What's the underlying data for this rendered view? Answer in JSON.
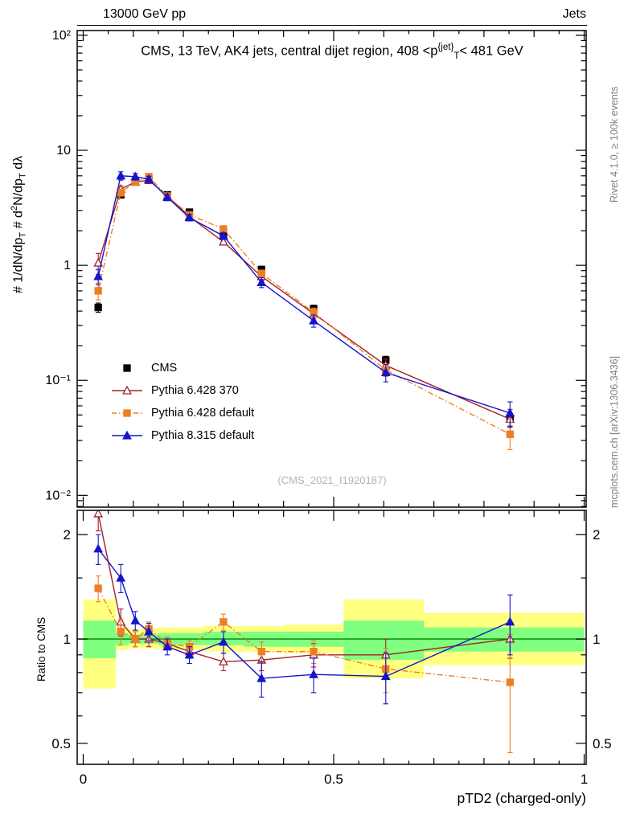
{
  "header": {
    "left": "13000 GeV pp",
    "right": "Jets"
  },
  "title_parts": [
    {
      "t": "CMS, 13 TeV, AK4 jets, central dijet region, 408 <p"
    },
    {
      "t": "{jet}",
      "s": "sup"
    },
    {
      "t": "T",
      "s": "sub"
    },
    {
      "t": "< 481 GeV"
    }
  ],
  "ylabel_parts": [
    {
      "t": "# 1/dN/dp"
    },
    {
      "t": "T",
      "s": "sub"
    },
    {
      "t": "  # d"
    },
    {
      "t": "2",
      "s": "sup"
    },
    {
      "t": "N/dp"
    },
    {
      "t": "T",
      "s": "sub"
    },
    {
      "t": " dλ"
    }
  ],
  "sidebar_right": {
    "top": "Rivet 4.1.0, ≥ 100k events",
    "bottom": "mcplots.cern.ch [arXiv:1306.3436]"
  },
  "watermark": "(CMS_2021_I1920187)",
  "axes": {
    "x": {
      "lim": [
        -0.012,
        1.004
      ],
      "ticks": [
        {
          "v": 0,
          "label": "0"
        },
        {
          "v": 0.5,
          "label": "0.5"
        },
        {
          "v": 1,
          "label": "1"
        }
      ],
      "label": "pTD2 (charged-only)"
    },
    "main": {
      "yticks": [
        {
          "v": 100,
          "label": "10²"
        },
        {
          "v": 10,
          "label": "10"
        },
        {
          "v": 1,
          "label": "1"
        },
        {
          "v": 0.1,
          "label": "10⁻¹"
        },
        {
          "v": 0.01,
          "label": "10⁻²"
        }
      ]
    },
    "ratio": {
      "yticks": [
        {
          "v": 2,
          "label": "2"
        },
        {
          "v": 1,
          "label": "1"
        },
        {
          "v": 0.5,
          "label": "0.5"
        }
      ],
      "ylabel": "Ratio to CMS"
    }
  },
  "colors": {
    "cms": "#000000",
    "pythia6_370": "#a02128",
    "pythia6_default": "#ee7e22",
    "pythia8_default": "#1414cc",
    "band_yellow": "#ffff80",
    "band_green": "#80ff80",
    "ref_line": "#008000",
    "frame": "#000000"
  },
  "chart_data": {
    "type": "line",
    "title": "CMS, 13 TeV, AK4 jets, central dijet region, 408 < pT{jet} < 481 GeV",
    "xlabel": "pTD2 (charged-only)",
    "x": [
      0.03,
      0.075,
      0.104,
      0.131,
      0.168,
      0.212,
      0.28,
      0.356,
      0.46,
      0.604,
      0.852
    ],
    "main": {
      "yscale": "log",
      "ylim": [
        0.0079,
        110
      ],
      "series": [
        {
          "name": "CMS",
          "color": "#000000",
          "marker": "square",
          "fill": "filled",
          "line": "none",
          "y": [
            0.43,
            4.1,
            5.3,
            5.5,
            4.1,
            2.9,
            1.85,
            0.92,
            0.42,
            0.15,
            0.046
          ],
          "yerr": [
            0.04,
            0.25,
            0.3,
            0.3,
            0.25,
            0.18,
            0.12,
            0.06,
            0.03,
            0.012,
            0.006
          ]
        },
        {
          "name": "Pythia 6.428 370",
          "color": "#a02128",
          "marker": "triangle",
          "fill": "open",
          "line": "solid",
          "y": [
            1.05,
            4.6,
            5.3,
            5.5,
            4.0,
            2.65,
            1.6,
            0.8,
            0.38,
            0.135,
            0.046
          ],
          "yerr": [
            0.22,
            0.3,
            0.25,
            0.25,
            0.2,
            0.15,
            0.1,
            0.06,
            0.035,
            0.018,
            0.01
          ]
        },
        {
          "name": "Pythia 6.428 default",
          "color": "#ee7e22",
          "marker": "square",
          "fill": "filled",
          "line": "dashdot",
          "y": [
            0.6,
            4.3,
            5.3,
            5.9,
            4.0,
            2.75,
            2.07,
            0.85,
            0.39,
            0.123,
            0.034
          ],
          "yerr": [
            0.1,
            0.3,
            0.25,
            0.3,
            0.2,
            0.15,
            0.12,
            0.06,
            0.035,
            0.015,
            0.009
          ]
        },
        {
          "name": "Pythia 8.315 default",
          "color": "#1414cc",
          "marker": "triangle",
          "fill": "filled",
          "line": "solid",
          "y": [
            0.8,
            6.0,
            5.9,
            5.6,
            3.9,
            2.6,
            1.8,
            0.71,
            0.33,
            0.117,
            0.052
          ],
          "yerr": [
            0.12,
            0.5,
            0.4,
            0.35,
            0.25,
            0.17,
            0.12,
            0.07,
            0.04,
            0.02,
            0.013
          ]
        }
      ]
    },
    "ratio": {
      "yscale": "log",
      "ylim": [
        0.435,
        2.35
      ],
      "reference": 1,
      "series": [
        {
          "name": "Pythia 6.428 370",
          "color": "#a02128",
          "marker": "triangle",
          "fill": "open",
          "line": "solid",
          "y": [
            2.3,
            1.12,
            1.0,
            1.0,
            0.97,
            0.92,
            0.86,
            0.87,
            0.9,
            0.9,
            1.0
          ],
          "yerr": [
            0.25,
            0.1,
            0.05,
            0.05,
            0.04,
            0.04,
            0.05,
            0.06,
            0.07,
            0.1,
            0.12
          ]
        },
        {
          "name": "Pythia 6.428 default",
          "color": "#ee7e22",
          "marker": "square",
          "fill": "filled",
          "line": "dashdot",
          "y": [
            1.4,
            1.05,
            1.0,
            1.07,
            0.97,
            0.95,
            1.12,
            0.92,
            0.92,
            0.82,
            0.75
          ],
          "yerr": [
            0.12,
            0.09,
            0.05,
            0.05,
            0.04,
            0.04,
            0.06,
            0.06,
            0.07,
            0.12,
            0.28
          ]
        },
        {
          "name": "Pythia 8.315 default",
          "color": "#1414cc",
          "marker": "triangle",
          "fill": "filled",
          "line": "solid",
          "y": [
            1.82,
            1.5,
            1.13,
            1.05,
            0.95,
            0.9,
            0.98,
            0.77,
            0.79,
            0.78,
            1.12
          ],
          "yerr": [
            0.18,
            0.14,
            0.07,
            0.06,
            0.05,
            0.05,
            0.07,
            0.09,
            0.09,
            0.13,
            0.22
          ]
        }
      ],
      "bands": [
        {
          "x0": 0.0,
          "x1": 0.065,
          "yellow": [
            0.72,
            1.3
          ],
          "green": [
            0.88,
            1.13
          ]
        },
        {
          "x0": 0.065,
          "x1": 0.09,
          "yellow": [
            0.93,
            1.08
          ],
          "green": [
            0.96,
            1.04
          ]
        },
        {
          "x0": 0.09,
          "x1": 0.12,
          "yellow": [
            0.94,
            1.07
          ],
          "green": [
            0.97,
            1.03
          ]
        },
        {
          "x0": 0.12,
          "x1": 0.15,
          "yellow": [
            0.94,
            1.07
          ],
          "green": [
            0.97,
            1.03
          ]
        },
        {
          "x0": 0.15,
          "x1": 0.19,
          "yellow": [
            0.93,
            1.08
          ],
          "green": [
            0.96,
            1.04
          ]
        },
        {
          "x0": 0.19,
          "x1": 0.24,
          "yellow": [
            0.93,
            1.08
          ],
          "green": [
            0.96,
            1.04
          ]
        },
        {
          "x0": 0.24,
          "x1": 0.32,
          "yellow": [
            0.92,
            1.09
          ],
          "green": [
            0.96,
            1.05
          ]
        },
        {
          "x0": 0.32,
          "x1": 0.4,
          "yellow": [
            0.92,
            1.09
          ],
          "green": [
            0.95,
            1.05
          ]
        },
        {
          "x0": 0.4,
          "x1": 0.52,
          "yellow": [
            0.91,
            1.1
          ],
          "green": [
            0.95,
            1.05
          ]
        },
        {
          "x0": 0.52,
          "x1": 0.68,
          "yellow": [
            0.77,
            1.3
          ],
          "green": [
            0.87,
            1.13
          ]
        },
        {
          "x0": 0.68,
          "x1": 1.0,
          "yellow": [
            0.84,
            1.19
          ],
          "green": [
            0.92,
            1.08
          ]
        }
      ]
    }
  }
}
